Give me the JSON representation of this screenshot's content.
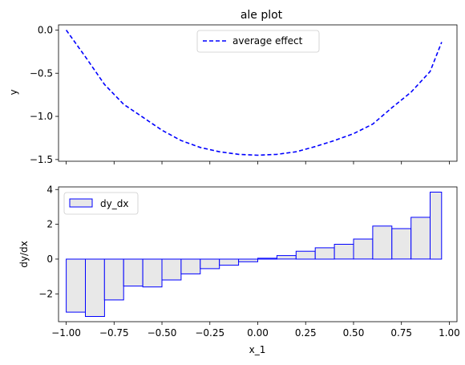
{
  "chart_data": [
    {
      "type": "line",
      "title": "ale plot",
      "xlabel": "",
      "ylabel": "y",
      "xlim": [
        -1.04,
        1.04
      ],
      "ylim": [
        -1.52,
        0.06
      ],
      "yticks": [
        0.0,
        -0.5,
        -1.0,
        -1.5
      ],
      "ytick_labels": [
        "0.0",
        "−0.5",
        "−1.0",
        "−1.5"
      ],
      "xticks": [
        -1.0,
        -0.75,
        -0.5,
        -0.25,
        0.0,
        0.25,
        0.5,
        0.75,
        1.0
      ],
      "show_xtick_labels": false,
      "legend_loc": "upper center",
      "series": [
        {
          "name": "average effect",
          "color": "#0000ff",
          "linestyle": "dashed",
          "x": [
            -1.0,
            -0.9,
            -0.8,
            -0.7,
            -0.6,
            -0.5,
            -0.4,
            -0.3,
            -0.2,
            -0.1,
            0.0,
            0.1,
            0.2,
            0.3,
            0.4,
            0.5,
            0.6,
            0.7,
            0.8,
            0.9,
            0.96
          ],
          "y": [
            0.0,
            -0.31,
            -0.63,
            -0.86,
            -1.01,
            -1.16,
            -1.28,
            -1.36,
            -1.41,
            -1.44,
            -1.45,
            -1.44,
            -1.41,
            -1.35,
            -1.28,
            -1.2,
            -1.09,
            -0.9,
            -0.72,
            -0.48,
            -0.14
          ]
        }
      ]
    },
    {
      "type": "bar",
      "title": "",
      "xlabel": "x_1",
      "ylabel": "dy/dx",
      "xlim": [
        -1.04,
        1.04
      ],
      "ylim": [
        -3.6,
        4.15
      ],
      "yticks": [
        4,
        2,
        0,
        -2
      ],
      "ytick_labels": [
        "4",
        "2",
        "0",
        "−2"
      ],
      "xticks": [
        -1.0,
        -0.75,
        -0.5,
        -0.25,
        0.0,
        0.25,
        0.5,
        0.75,
        1.0
      ],
      "xtick_labels": [
        "−1.00",
        "−0.75",
        "−0.50",
        "−0.25",
        "0.00",
        "0.25",
        "0.50",
        "0.75",
        "1.00"
      ],
      "legend_loc": "upper left",
      "bar_face_color": "#e8e8e8",
      "bar_edge_color": "#0000ff",
      "series": [
        {
          "name": "dy_dx",
          "bin_edges": [
            -1.0,
            -0.9,
            -0.8,
            -0.7,
            -0.6,
            -0.5,
            -0.4,
            -0.3,
            -0.2,
            -0.1,
            0.0,
            0.1,
            0.2,
            0.3,
            0.4,
            0.5,
            0.6,
            0.7,
            0.8,
            0.9,
            0.96
          ],
          "values": [
            -3.05,
            -3.3,
            -2.35,
            -1.55,
            -1.6,
            -1.2,
            -0.85,
            -0.55,
            -0.35,
            -0.15,
            0.05,
            0.2,
            0.45,
            0.65,
            0.85,
            1.15,
            1.9,
            1.75,
            2.4,
            3.85
          ]
        }
      ]
    }
  ]
}
